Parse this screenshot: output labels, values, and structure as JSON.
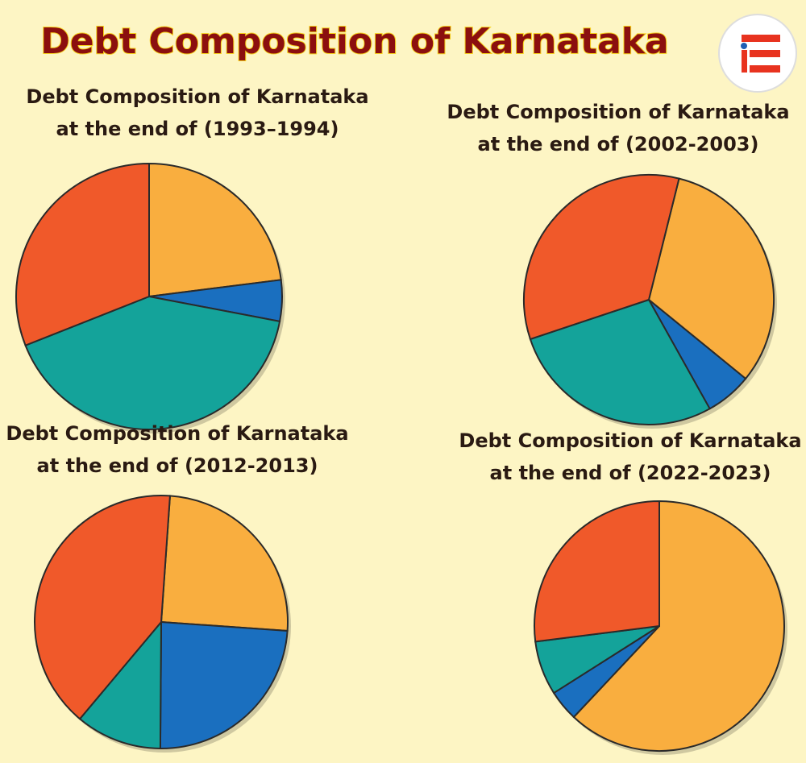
{
  "title": "Debt Composition of Karnataka",
  "chart_data": [
    {
      "type": "pie",
      "title": "Debt Composition of Karnataka",
      "subtitle": "at the  end of  (1993–1994)",
      "start_angle": 0,
      "values": [
        23,
        5,
        41,
        31
      ],
      "colors": [
        "#f9ae3f",
        "#1a6fbf",
        "#14a39a",
        "#f0592a"
      ]
    },
    {
      "type": "pie",
      "title": "Debt Composition of Karnataka",
      "subtitle": "at the  end of  (2002-2003)",
      "start_angle": 14,
      "values": [
        32,
        6,
        28,
        34
      ],
      "colors": [
        "#f9ae3f",
        "#1a6fbf",
        "#14a39a",
        "#f0592a"
      ]
    },
    {
      "type": "pie",
      "title": "Debt Composition of Karnataka",
      "subtitle": "at the  end of  (2012-2013)",
      "start_angle": 4,
      "values": [
        25,
        24,
        11,
        40
      ],
      "colors": [
        "#f9ae3f",
        "#1a6fbf",
        "#14a39a",
        "#f0592a"
      ]
    },
    {
      "type": "pie",
      "title": "Debt Composition of Karnataka",
      "subtitle": "at the  end of  (2022-2023)",
      "start_angle": 0,
      "values": [
        62,
        4,
        7,
        27
      ],
      "colors": [
        "#f9ae3f",
        "#1a6fbf",
        "#14a39a",
        "#f0592a"
      ]
    }
  ]
}
